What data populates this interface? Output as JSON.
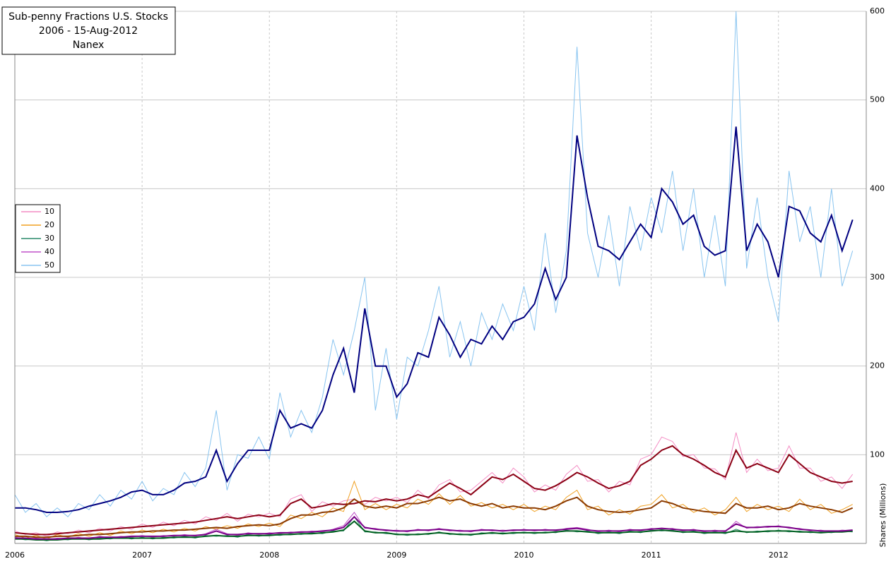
{
  "chart_data": {
    "type": "line",
    "title": "Sub-penny Fractions U.S. Stocks",
    "subtitle": "2006 - 15-Aug-2012",
    "source": "Nanex",
    "y_label": "Shares (Millions)",
    "x": [
      2006,
      2006.083,
      2006.167,
      2006.25,
      2006.333,
      2006.417,
      2006.5,
      2006.583,
      2006.667,
      2006.75,
      2006.833,
      2006.917,
      2007,
      2007.083,
      2007.167,
      2007.25,
      2007.333,
      2007.417,
      2007.5,
      2007.583,
      2007.667,
      2007.75,
      2007.833,
      2007.917,
      2008,
      2008.083,
      2008.167,
      2008.25,
      2008.333,
      2008.417,
      2008.5,
      2008.583,
      2008.667,
      2008.75,
      2008.833,
      2008.917,
      2009,
      2009.083,
      2009.167,
      2009.25,
      2009.333,
      2009.417,
      2009.5,
      2009.583,
      2009.667,
      2009.75,
      2009.833,
      2009.917,
      2010,
      2010.083,
      2010.167,
      2010.25,
      2010.333,
      2010.417,
      2010.5,
      2010.583,
      2010.667,
      2010.75,
      2010.833,
      2010.917,
      2011,
      2011.083,
      2011.167,
      2011.25,
      2011.333,
      2011.417,
      2011.5,
      2011.583,
      2011.667,
      2011.75,
      2011.833,
      2011.917,
      2012,
      2012.083,
      2012.167,
      2012.25,
      2012.333,
      2012.417,
      2012.5,
      2012.583
    ],
    "xlim": [
      2006,
      2012.69
    ],
    "xticks": [
      2006,
      2007,
      2008,
      2009,
      2010,
      2011,
      2012
    ],
    "ylim": [
      0,
      600
    ],
    "yticks": [
      100,
      200,
      300,
      400,
      500,
      600
    ],
    "grid": true,
    "legend": "left",
    "series": [
      {
        "name": "10",
        "color": "#f48cc4",
        "values": [
          14,
          10,
          12,
          8,
          13,
          11,
          15,
          12,
          17,
          14,
          19,
          16,
          22,
          18,
          24,
          20,
          26,
          22,
          30,
          26,
          34,
          25,
          33,
          30,
          34,
          30,
          50,
          55,
          36,
          47,
          42,
          48,
          50,
          44,
          52,
          48,
          52,
          46,
          60,
          50,
          66,
          72,
          58,
          60,
          70,
          80,
          68,
          85,
          75,
          58,
          66,
          60,
          78,
          88,
          70,
          72,
          58,
          70,
          66,
          95,
          100,
          120,
          115,
          98,
          100,
          85,
          84,
          72,
          125,
          80,
          95,
          82,
          85,
          110,
          85,
          85,
          70,
          75,
          62,
          78
        ],
        "average": {
          "color": "#8b0014",
          "values": [
            12,
            11,
            10,
            10,
            11,
            12,
            13,
            14,
            15,
            16,
            17,
            18,
            19,
            20,
            21,
            22,
            23,
            24,
            26,
            28,
            30,
            28,
            30,
            32,
            30,
            32,
            45,
            50,
            40,
            42,
            45,
            44,
            45,
            48,
            47,
            50,
            48,
            50,
            55,
            52,
            60,
            68,
            62,
            55,
            65,
            75,
            72,
            78,
            70,
            62,
            60,
            65,
            72,
            80,
            75,
            68,
            62,
            65,
            70,
            88,
            95,
            105,
            110,
            100,
            95,
            88,
            80,
            75,
            105,
            85,
            90,
            85,
            80,
            100,
            90,
            80,
            75,
            70,
            68,
            70
          ]
        }
      },
      {
        "name": "20",
        "color": "#f0a020",
        "values": [
          10,
          6,
          9,
          5,
          10,
          7,
          11,
          8,
          12,
          9,
          14,
          11,
          15,
          12,
          16,
          13,
          17,
          14,
          19,
          16,
          20,
          17,
          22,
          19,
          23,
          19,
          32,
          28,
          35,
          30,
          40,
          36,
          70,
          38,
          45,
          38,
          44,
          40,
          50,
          44,
          56,
          44,
          54,
          42,
          46,
          40,
          44,
          38,
          44,
          36,
          42,
          38,
          52,
          60,
          38,
          42,
          32,
          38,
          33,
          42,
          44,
          55,
          40,
          44,
          35,
          40,
          32,
          38,
          52,
          36,
          44,
          38,
          42,
          36,
          50,
          38,
          44,
          34,
          38,
          44
        ],
        "average": {
          "color": "#8b3a00",
          "values": [
            8,
            8,
            7,
            7,
            8,
            8,
            9,
            10,
            10,
            11,
            12,
            13,
            13,
            14,
            14,
            15,
            15,
            16,
            17,
            18,
            17,
            19,
            20,
            21,
            20,
            22,
            28,
            32,
            32,
            35,
            36,
            40,
            50,
            42,
            40,
            42,
            40,
            45,
            45,
            48,
            52,
            48,
            50,
            45,
            42,
            45,
            40,
            42,
            40,
            40,
            38,
            42,
            48,
            52,
            42,
            38,
            36,
            35,
            36,
            38,
            40,
            48,
            45,
            40,
            38,
            36,
            35,
            34,
            45,
            40,
            40,
            42,
            38,
            40,
            45,
            42,
            40,
            38,
            35,
            40
          ]
        }
      },
      {
        "name": "30",
        "color": "#2a8a6a",
        "values": [
          6,
          4,
          5,
          3,
          5,
          4,
          6,
          4,
          6,
          5,
          7,
          5,
          7,
          5,
          7,
          6,
          8,
          6,
          9,
          8,
          9,
          7,
          10,
          8,
          10,
          9,
          11,
          10,
          12,
          11,
          14,
          14,
          30,
          13,
          13,
          11,
          11,
          9,
          11,
          10,
          13,
          10,
          11,
          9,
          12,
          11,
          12,
          11,
          13,
          11,
          13,
          12,
          15,
          13,
          14,
          11,
          13,
          11,
          14,
          12,
          15,
          14,
          15,
          12,
          14,
          11,
          13,
          11,
          16,
          12,
          14,
          13,
          15,
          13,
          14,
          12,
          13,
          12,
          14,
          13
        ],
        "average": {
          "color": "#006020",
          "values": [
            5,
            5,
            4,
            4,
            4,
            5,
            5,
            5,
            5,
            6,
            6,
            6,
            6,
            6,
            6,
            7,
            7,
            7,
            8,
            9,
            8,
            8,
            9,
            9,
            9,
            10,
            10,
            11,
            11,
            12,
            13,
            15,
            25,
            14,
            12,
            12,
            10,
            10,
            10,
            11,
            12,
            11,
            10,
            10,
            11,
            12,
            11,
            12,
            12,
            12,
            12,
            13,
            14,
            14,
            13,
            12,
            12,
            12,
            13,
            13,
            14,
            15,
            14,
            13,
            13,
            12,
            12,
            12,
            14,
            13,
            13,
            14,
            14,
            14,
            13,
            13,
            12,
            13,
            13,
            14
          ]
        }
      },
      {
        "name": "40",
        "color": "#c050c8",
        "values": [
          7,
          5,
          6,
          4,
          6,
          5,
          7,
          5,
          8,
          6,
          8,
          7,
          9,
          7,
          9,
          8,
          10,
          8,
          11,
          16,
          11,
          9,
          12,
          10,
          12,
          11,
          13,
          12,
          14,
          13,
          16,
          20,
          35,
          17,
          17,
          14,
          15,
          13,
          16,
          14,
          17,
          14,
          15,
          13,
          16,
          14,
          15,
          14,
          16,
          14,
          16,
          14,
          17,
          18,
          16,
          13,
          15,
          13,
          16,
          14,
          17,
          16,
          17,
          14,
          16,
          13,
          15,
          13,
          25,
          17,
          19,
          18,
          20,
          17,
          17,
          14,
          15,
          13,
          15,
          14
        ],
        "average": {
          "color": "#7a0088",
          "values": [
            6,
            6,
            5,
            5,
            5,
            6,
            6,
            6,
            7,
            7,
            7,
            8,
            8,
            8,
            8,
            9,
            9,
            9,
            10,
            14,
            10,
            10,
            11,
            11,
            11,
            12,
            12,
            13,
            13,
            14,
            15,
            18,
            30,
            18,
            16,
            15,
            14,
            14,
            15,
            15,
            16,
            15,
            14,
            14,
            15,
            15,
            14,
            15,
            15,
            15,
            15,
            15,
            16,
            17,
            15,
            14,
            14,
            14,
            15,
            15,
            16,
            17,
            16,
            15,
            15,
            14,
            14,
            14,
            22,
            18,
            18,
            19,
            19,
            18,
            16,
            15,
            14,
            14,
            14,
            15
          ]
        }
      },
      {
        "name": "50",
        "color": "#88c4f0",
        "values": [
          55,
          35,
          45,
          30,
          40,
          30,
          45,
          38,
          55,
          42,
          60,
          50,
          70,
          48,
          62,
          55,
          80,
          64,
          85,
          150,
          60,
          100,
          96,
          120,
          95,
          170,
          120,
          150,
          125,
          165,
          230,
          190,
          240,
          300,
          150,
          220,
          140,
          210,
          200,
          240,
          290,
          210,
          250,
          200,
          260,
          230,
          270,
          240,
          290,
          240,
          350,
          260,
          330,
          560,
          350,
          300,
          370,
          290,
          380,
          330,
          390,
          350,
          420,
          330,
          400,
          300,
          370,
          290,
          600,
          310,
          390,
          300,
          250,
          420,
          340,
          380,
          300,
          400,
          290,
          330
        ],
        "average": {
          "color": "#000080",
          "values": [
            40,
            40,
            38,
            35,
            35,
            36,
            38,
            42,
            45,
            48,
            52,
            58,
            60,
            55,
            55,
            60,
            68,
            70,
            75,
            105,
            70,
            90,
            105,
            105,
            105,
            150,
            130,
            135,
            130,
            150,
            190,
            220,
            170,
            265,
            200,
            200,
            165,
            180,
            215,
            210,
            255,
            235,
            210,
            230,
            225,
            245,
            230,
            250,
            255,
            270,
            310,
            275,
            300,
            460,
            390,
            335,
            330,
            320,
            340,
            360,
            345,
            400,
            385,
            360,
            370,
            335,
            325,
            330,
            470,
            330,
            360,
            340,
            300,
            380,
            375,
            350,
            340,
            370,
            330,
            365
          ]
        }
      }
    ]
  }
}
